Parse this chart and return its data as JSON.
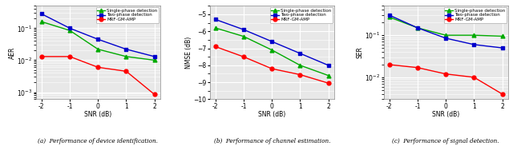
{
  "snr": [
    -2,
    -1,
    0,
    1,
    2
  ],
  "aer_single": [
    0.16,
    0.085,
    0.022,
    0.013,
    0.01
  ],
  "aer_two": [
    0.28,
    0.1,
    0.045,
    0.022,
    0.013
  ],
  "aer_mrf": [
    0.013,
    0.013,
    0.006,
    0.0045,
    0.00085
  ],
  "nmse_single": [
    -5.8,
    -6.3,
    -7.1,
    -8.0,
    -8.6
  ],
  "nmse_two": [
    -5.3,
    -5.9,
    -6.6,
    -7.3,
    -8.0
  ],
  "nmse_mrf": [
    -6.9,
    -7.5,
    -8.2,
    -8.55,
    -9.05
  ],
  "ser_single": [
    0.27,
    0.15,
    0.1,
    0.1,
    0.095
  ],
  "ser_two": [
    0.3,
    0.15,
    0.085,
    0.06,
    0.05
  ],
  "ser_mrf": [
    0.02,
    0.017,
    0.012,
    0.01,
    0.004
  ],
  "color_single": "#00aa00",
  "color_two": "#0000cc",
  "color_mrf": "#ff0000",
  "marker_single": "^",
  "marker_two": "s",
  "marker_mrf": "o",
  "label_single": "Single-phase detection",
  "label_two": "Two-phase detection",
  "label_mrf": "MRF-GM-AMP",
  "xlabel": "SNR (dB)",
  "ylabel_aer": "AER",
  "ylabel_nmse": "NMSE (dB)",
  "ylabel_ser": "SER",
  "caption_a": "(a)  Performance of device identification.",
  "caption_b": "(b)  Performance of channel estimation.",
  "caption_c": "(c)  Performance of signal detection.",
  "aer_ylim": [
    0.0006,
    0.5
  ],
  "nmse_ylim": [
    -10,
    -4.5
  ],
  "ser_ylim": [
    0.003,
    0.5
  ],
  "plot_bg": "#e8e8e8",
  "fig_bg": "#ffffff",
  "grid_color": "#ffffff"
}
